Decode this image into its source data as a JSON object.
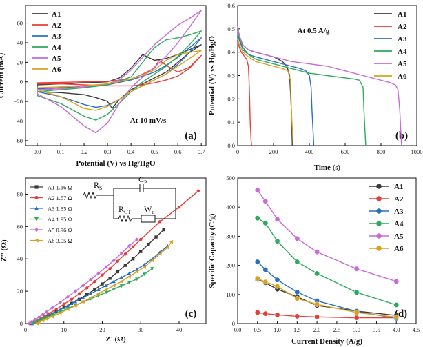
{
  "colors": {
    "A1": "#3b3b3b",
    "A2": "#e83c36",
    "A3": "#2a6fbf",
    "A4": "#2eaa5c",
    "A5": "#c86ad8",
    "A6": "#d9a21e"
  },
  "chart_data": [
    {
      "id": "a",
      "type": "line",
      "panel_label": "(a)",
      "title": "",
      "annotation": "At 10 mV/s",
      "xlabel": "Potential (V) vs Hg/HgO",
      "ylabel": "Current (mA)",
      "xlim": [
        -0.05,
        0.72
      ],
      "ylim": [
        -65,
        78
      ],
      "xticks": [
        0.0,
        0.1,
        0.2,
        0.3,
        0.4,
        0.5,
        0.6,
        0.7
      ],
      "xtick_labels": [
        "0.0",
        "0.1",
        "0.2",
        "0.3",
        "0.4",
        "0.5",
        "0.6",
        "0.7"
      ],
      "yticks": [
        -60,
        -40,
        -20,
        0,
        20,
        40,
        60
      ],
      "ytick_labels": [
        "−60",
        "−40",
        "−20",
        "0",
        "20",
        "40",
        "60"
      ],
      "legend": "top-left",
      "series": [
        {
          "name": "A1",
          "x": [
            0.0,
            0.1,
            0.2,
            0.3,
            0.35,
            0.4,
            0.45,
            0.5,
            0.55,
            0.6,
            0.65,
            0.7,
            0.65,
            0.6,
            0.55,
            0.5,
            0.45,
            0.4,
            0.35,
            0.32,
            0.3,
            0.25,
            0.2,
            0.1,
            0.0
          ],
          "y": [
            -3,
            -2,
            -1,
            0,
            4,
            14,
            28,
            22,
            24,
            28,
            33,
            38,
            30,
            20,
            10,
            4,
            -2,
            -8,
            -18,
            -27,
            -20,
            -16,
            -13,
            -11,
            -10
          ]
        },
        {
          "name": "A2",
          "x": [
            0.0,
            0.1,
            0.2,
            0.3,
            0.4,
            0.45,
            0.5,
            0.52,
            0.55,
            0.6,
            0.65,
            0.7,
            0.65,
            0.6,
            0.55,
            0.5,
            0.45,
            0.4,
            0.35,
            0.3,
            0.2,
            0.1,
            0.0
          ],
          "y": [
            -1,
            -0.5,
            0,
            0.5,
            3,
            8,
            14,
            22,
            17,
            10,
            15,
            27,
            14,
            6,
            2,
            -1,
            -3,
            -4,
            -4,
            -4,
            -3,
            -2,
            -2
          ]
        },
        {
          "name": "A3",
          "x": [
            0.0,
            0.1,
            0.2,
            0.3,
            0.4,
            0.5,
            0.55,
            0.6,
            0.65,
            0.7,
            0.65,
            0.6,
            0.55,
            0.5,
            0.45,
            0.4,
            0.35,
            0.3,
            0.25,
            0.2,
            0.1,
            0.0
          ],
          "y": [
            -7,
            -6,
            -5,
            -3,
            2,
            10,
            17,
            25,
            35,
            45,
            30,
            18,
            8,
            2,
            -4,
            -10,
            -18,
            -24,
            -26,
            -23,
            -15,
            -10
          ]
        },
        {
          "name": "A4",
          "x": [
            0.0,
            0.1,
            0.2,
            0.3,
            0.4,
            0.45,
            0.5,
            0.55,
            0.6,
            0.65,
            0.7,
            0.65,
            0.6,
            0.55,
            0.5,
            0.45,
            0.4,
            0.35,
            0.3,
            0.25,
            0.2,
            0.1,
            0.0
          ],
          "y": [
            -10,
            -8,
            -6,
            -3,
            5,
            20,
            35,
            43,
            45,
            48,
            52,
            38,
            26,
            16,
            8,
            0,
            -10,
            -22,
            -33,
            -39,
            -35,
            -22,
            -14
          ]
        },
        {
          "name": "A5",
          "x": [
            0.0,
            0.1,
            0.2,
            0.3,
            0.35,
            0.4,
            0.45,
            0.5,
            0.55,
            0.6,
            0.65,
            0.7,
            0.65,
            0.6,
            0.55,
            0.5,
            0.45,
            0.4,
            0.35,
            0.3,
            0.25,
            0.2,
            0.1,
            0.0
          ],
          "y": [
            -8,
            -7,
            -5,
            -2,
            2,
            12,
            25,
            38,
            48,
            58,
            65,
            73,
            56,
            40,
            26,
            15,
            5,
            -6,
            -22,
            -42,
            -52,
            -45,
            -25,
            -12
          ]
        },
        {
          "name": "A6",
          "x": [
            0.0,
            0.1,
            0.2,
            0.3,
            0.4,
            0.5,
            0.55,
            0.6,
            0.65,
            0.7,
            0.65,
            0.6,
            0.55,
            0.5,
            0.45,
            0.4,
            0.35,
            0.3,
            0.25,
            0.2,
            0.1,
            0.0
          ],
          "y": [
            -6,
            -5,
            -4,
            -2,
            3,
            12,
            22,
            28,
            30,
            32,
            24,
            16,
            8,
            2,
            -4,
            -10,
            -18,
            -25,
            -29,
            -27,
            -15,
            -8
          ]
        }
      ]
    },
    {
      "id": "b",
      "type": "line",
      "panel_label": "(b)",
      "annotation": "At 0.5 A/g",
      "xlabel": "Time (s)",
      "ylabel": "Potential (V) vs Hg/HgO",
      "xlim": [
        0,
        1000
      ],
      "ylim": [
        0,
        0.6
      ],
      "xticks": [
        0,
        200,
        400,
        600,
        800,
        1000
      ],
      "xtick_labels": [
        "0",
        "200",
        "400",
        "600",
        "800",
        "1000"
      ],
      "yticks": [
        0.0,
        0.1,
        0.2,
        0.3,
        0.4,
        0.5,
        0.6
      ],
      "ytick_labels": [
        "0.0",
        "0.1",
        "0.2",
        "0.3",
        "0.4",
        "0.5",
        "0.6"
      ],
      "legend": "top-right",
      "series": [
        {
          "name": "A1",
          "x": [
            0,
            10,
            30,
            60,
            100,
            150,
            200,
            250,
            275,
            290,
            300,
            305
          ],
          "y": [
            0.48,
            0.46,
            0.43,
            0.41,
            0.4,
            0.39,
            0.38,
            0.36,
            0.34,
            0.3,
            0.15,
            0.0
          ]
        },
        {
          "name": "A2",
          "x": [
            0,
            10,
            20,
            30,
            50,
            60,
            65,
            70,
            75,
            78
          ],
          "y": [
            0.44,
            0.42,
            0.4,
            0.39,
            0.37,
            0.34,
            0.25,
            0.1,
            0.02,
            0.0
          ]
        },
        {
          "name": "A3",
          "x": [
            0,
            10,
            30,
            60,
            100,
            200,
            300,
            350,
            380,
            400,
            410,
            415,
            425
          ],
          "y": [
            0.48,
            0.45,
            0.41,
            0.39,
            0.38,
            0.36,
            0.34,
            0.33,
            0.32,
            0.3,
            0.25,
            0.15,
            0.0
          ]
        },
        {
          "name": "A4",
          "x": [
            0,
            10,
            30,
            60,
            100,
            200,
            300,
            400,
            500,
            600,
            650,
            680,
            700,
            705,
            715
          ],
          "y": [
            0.49,
            0.46,
            0.42,
            0.39,
            0.37,
            0.35,
            0.33,
            0.31,
            0.3,
            0.29,
            0.285,
            0.28,
            0.25,
            0.15,
            0.0
          ]
        },
        {
          "name": "A5",
          "x": [
            0,
            10,
            30,
            60,
            100,
            200,
            300,
            400,
            500,
            600,
            700,
            800,
            850,
            880,
            895,
            905,
            915
          ],
          "y": [
            0.51,
            0.47,
            0.43,
            0.41,
            0.4,
            0.38,
            0.36,
            0.35,
            0.34,
            0.32,
            0.3,
            0.28,
            0.27,
            0.26,
            0.24,
            0.15,
            0.0
          ]
        },
        {
          "name": "A6",
          "x": [
            0,
            10,
            30,
            60,
            100,
            150,
            200,
            250,
            280,
            295,
            300,
            310
          ],
          "y": [
            0.46,
            0.43,
            0.4,
            0.38,
            0.36,
            0.35,
            0.34,
            0.33,
            0.32,
            0.28,
            0.15,
            0.0
          ]
        }
      ]
    },
    {
      "id": "c",
      "type": "scatter",
      "panel_label": "(c)",
      "xlabel": "Z' (Ω)",
      "ylabel": "Z'' (Ω)",
      "xlim": [
        0,
        47
      ],
      "ylim": [
        0,
        90
      ],
      "xticks": [
        0,
        10,
        20,
        30,
        40
      ],
      "xtick_labels": [
        "0",
        "10",
        "20",
        "30",
        "40"
      ],
      "yticks": [
        0,
        20,
        40,
        60,
        80
      ],
      "ytick_labels": [
        "0",
        "20",
        "40",
        "60",
        "80"
      ],
      "legend": "top-left",
      "circuit_labels": {
        "rs": "R",
        "rs_sub": "S",
        "cp": "C",
        "cp_sub": "P",
        "rct": "R",
        "rct_sub": "CT",
        "wd": "W",
        "wd_sub": "d"
      },
      "series": [
        {
          "name": "A1",
          "legend_label": "A1 1.16 Ω",
          "marker": "square",
          "x": [
            1.2,
            2,
            3,
            4,
            5,
            6,
            8,
            10,
            12,
            14,
            16,
            18,
            20,
            22,
            24,
            26,
            28,
            30,
            32,
            34,
            36
          ],
          "y": [
            0,
            0.8,
            1.8,
            2.8,
            4,
            5.2,
            7.6,
            10,
            12.5,
            15,
            18,
            21,
            24.5,
            28,
            32,
            36,
            40,
            44.5,
            49,
            53.5,
            58
          ]
        },
        {
          "name": "A2",
          "legend_label": "A2 1.57 Ω",
          "marker": "circle",
          "x": [
            1.6,
            2,
            3,
            4,
            5,
            6,
            8,
            10,
            12,
            14,
            16,
            18,
            20,
            22,
            24,
            26,
            28,
            30,
            35,
            40,
            45
          ],
          "y": [
            0,
            0.8,
            2,
            3.2,
            4.6,
            6,
            8.8,
            12,
            15,
            18.5,
            22,
            26,
            30,
            34,
            38.5,
            43,
            47.5,
            52,
            63,
            72,
            82
          ]
        },
        {
          "name": "A3",
          "legend_label": "A3 1.85 Ω",
          "marker": "triangle",
          "x": [
            1.9,
            2.5,
            3.5,
            4.5,
            5.5,
            7,
            9,
            11,
            13,
            15,
            17,
            19,
            21,
            23,
            25,
            27,
            29,
            31,
            33,
            35,
            37
          ],
          "y": [
            0,
            0.8,
            2,
            3.2,
            4.3,
            6,
            8.5,
            11,
            13.5,
            16,
            18.5,
            21,
            23.5,
            26,
            28.5,
            31,
            33.5,
            36.5,
            40,
            44,
            48
          ]
        },
        {
          "name": "A4",
          "legend_label": "A4 1.95 Ω",
          "marker": "triangle-down",
          "x": [
            2,
            2.5,
            3.5,
            4.5,
            5.5,
            7,
            9,
            11,
            13,
            15,
            17,
            19,
            21,
            23,
            25,
            27,
            29,
            31,
            33
          ],
          "y": [
            0,
            0.7,
            1.8,
            2.8,
            3.8,
            5.3,
            7.3,
            9.3,
            11.3,
            13.3,
            15.3,
            17.3,
            19.3,
            21.3,
            23.3,
            25.4,
            27.5,
            30.5,
            34
          ]
        },
        {
          "name": "A5",
          "legend_label": "A5 0.96 Ω",
          "marker": "diamond",
          "x": [
            1,
            1.5,
            2.5,
            3.5,
            4.5,
            5.5,
            7,
            9,
            11,
            13,
            15,
            17,
            19,
            21,
            23,
            25,
            27,
            29
          ],
          "y": [
            0,
            1,
            2.5,
            4,
            5.6,
            7.2,
            9.8,
            13,
            16.5,
            20,
            23.5,
            27.2,
            31,
            35,
            39,
            43.5,
            48,
            52
          ]
        },
        {
          "name": "A6",
          "legend_label": "A6 3.05 Ω",
          "marker": "triangle-left",
          "x": [
            3,
            3.5,
            4.5,
            5.5,
            7,
            9,
            11,
            13,
            15,
            17,
            19,
            21,
            23,
            25,
            27,
            29,
            31,
            33,
            35,
            37,
            38
          ],
          "y": [
            0,
            0.7,
            1.8,
            2.8,
            4.3,
            6.5,
            8.8,
            11,
            13.5,
            16,
            18.5,
            21,
            23.5,
            26,
            29,
            32,
            35,
            39,
            43,
            47,
            50.5
          ]
        }
      ]
    },
    {
      "id": "d",
      "type": "line",
      "panel_label": "(d)",
      "xlabel": "Current Density (A/g)",
      "ylabel": "Specific Capacity (C/g)",
      "xlim": [
        0,
        4.5
      ],
      "ylim": [
        0,
        500
      ],
      "xticks": [
        0.0,
        0.5,
        1.0,
        1.5,
        2.0,
        2.5,
        3.0,
        3.5,
        4.0,
        4.5
      ],
      "xtick_labels": [
        "0.0",
        "0.5",
        "1.0",
        "1.5",
        "2.0",
        "2.5",
        "3.0",
        "3.5",
        "4.0",
        "4.5"
      ],
      "yticks": [
        0,
        100,
        200,
        300,
        400,
        500
      ],
      "ytick_labels": [
        "0",
        "100",
        "200",
        "300",
        "400",
        "500"
      ],
      "legend": "top-right",
      "categories": [
        0.5,
        0.7,
        1.0,
        1.5,
        2.0,
        3.0,
        4.0
      ],
      "series": [
        {
          "name": "A1",
          "values": [
            152,
            140,
            118,
            92,
            62,
            43,
            28
          ]
        },
        {
          "name": "A2",
          "values": [
            38,
            34,
            30,
            25,
            23,
            20,
            20
          ]
        },
        {
          "name": "A3",
          "values": [
            212,
            185,
            150,
            108,
            78,
            42,
            18
          ]
        },
        {
          "name": "A4",
          "values": [
            362,
            345,
            283,
            212,
            172,
            107,
            64
          ]
        },
        {
          "name": "A5",
          "values": [
            458,
            420,
            358,
            292,
            246,
            188,
            145
          ]
        },
        {
          "name": "A6",
          "values": [
            155,
            143,
            128,
            86,
            66,
            38,
            22
          ]
        }
      ]
    }
  ]
}
